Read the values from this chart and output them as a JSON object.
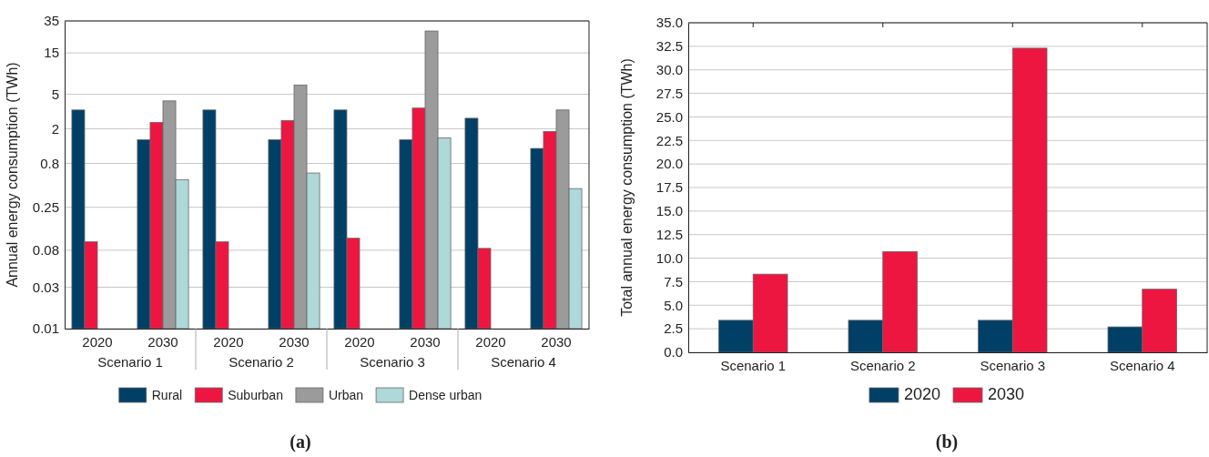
{
  "chart_data": [
    {
      "type": "bar",
      "title": "(a)",
      "ylabel": "Annual energy consumption (TWh)",
      "categories": [
        "2020",
        "2030",
        "2020",
        "2030",
        "2020",
        "2030",
        "2020",
        "2030"
      ],
      "annotations": [
        "Scenario 1",
        "Scenario 2",
        "Scenario 3",
        "Scenario 4"
      ],
      "series": [
        {
          "name": "Rural",
          "color": "#003f66",
          "values": [
            3.3,
            1.5,
            3.3,
            1.5,
            3.3,
            1.5,
            2.65,
            1.19
          ]
        },
        {
          "name": "Suburban",
          "color": "#ed1641",
          "values": [
            0.1,
            2.37,
            0.1,
            2.5,
            0.11,
            3.47,
            0.084,
            1.87
          ]
        },
        {
          "name": "Urban",
          "color": "#9b9b9b",
          "values": [
            null,
            4.2,
            null,
            6.4,
            null,
            26.8,
            null,
            3.3
          ]
        },
        {
          "name": "Dense urban",
          "color": "#afd8d8",
          "values": [
            null,
            0.52,
            null,
            0.62,
            null,
            1.57,
            null,
            0.41
          ]
        }
      ],
      "log": "y",
      "ylim": [
        0.01,
        35
      ],
      "yticks": [
        0.01,
        0.03,
        0.08,
        0.25,
        0.8,
        2,
        5,
        15,
        35
      ],
      "grid": "y",
      "legend": "bottom"
    },
    {
      "type": "bar",
      "title": "(b)",
      "ylabel": "Total annual energy consumption (TWh)",
      "categories": [
        "Scenario 1",
        "Scenario 2",
        "Scenario 3",
        "Scenario 4"
      ],
      "series": [
        {
          "name": "2020",
          "color": "#003f66",
          "values": [
            3.4,
            3.4,
            3.4,
            2.7
          ]
        },
        {
          "name": "2030",
          "color": "#ed1641",
          "values": [
            8.3,
            10.7,
            32.3,
            6.7
          ]
        }
      ],
      "ylim": [
        0,
        35
      ],
      "yticks": [
        {
          "value": 0,
          "label": "0.0"
        },
        {
          "value": 2.5,
          "label": "2.5"
        },
        {
          "value": 5,
          "label": "5.0"
        },
        {
          "value": 7.5,
          "label": "7.5"
        },
        {
          "value": 10,
          "label": "10.0"
        },
        {
          "value": 12.5,
          "label": "12.5"
        },
        {
          "value": 15,
          "label": "15.0"
        },
        {
          "value": 17.5,
          "label": "17.5"
        },
        {
          "value": 20,
          "label": "20.0"
        },
        {
          "value": 22.5,
          "label": "22.5"
        },
        {
          "value": 25,
          "label": "25.0"
        },
        {
          "value": 27.5,
          "label": "27.5"
        },
        {
          "value": 30,
          "label": "30.0"
        },
        {
          "value": 32.5,
          "label": "32.5"
        },
        {
          "value": 35,
          "label": "35.0"
        }
      ],
      "grid": "y",
      "legend": "bottom"
    }
  ]
}
